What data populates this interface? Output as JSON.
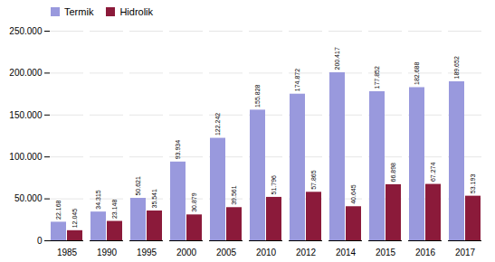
{
  "chart_data": {
    "type": "bar",
    "categories": [
      "1985",
      "1990",
      "1995",
      "2000",
      "2005",
      "2010",
      "2012",
      "2014",
      "2015",
      "2016",
      "2017"
    ],
    "series": [
      {
        "name": "Termik",
        "color": "#9999DD",
        "values": [
          22168,
          34315,
          50621,
          93934,
          122242,
          155828,
          174872,
          200417,
          177852,
          182688,
          189652
        ],
        "value_labels": [
          "22.168",
          "34.315",
          "50.621",
          "93.934",
          "122.242",
          "155.828",
          "174.872",
          "200.417",
          "177.852",
          "182.688",
          "189.652"
        ]
      },
      {
        "name": "Hidrolik",
        "color": "#8B1A3A",
        "values": [
          12045,
          23148,
          35541,
          30879,
          39561,
          51796,
          57865,
          40645,
          66898,
          67274,
          53193
        ],
        "value_labels": [
          "12.045",
          "23.148",
          "35.541",
          "30.879",
          "39.561",
          "51.796",
          "57.865",
          "40.645",
          "66.898",
          "67.274",
          "53.193"
        ]
      }
    ],
    "ylim": [
      0,
      250000
    ],
    "yticks": [
      0,
      {
        "value": 50000,
        "label": "50.000"
      },
      {
        "value": 100000,
        "label": "100.000"
      },
      {
        "value": 150000,
        "label": "150.000"
      },
      {
        "value": 200000,
        "label": "200.000"
      },
      {
        "value": 250000,
        "label": "250.000"
      }
    ],
    "grid": true,
    "legend": "upper left",
    "data_labels": true
  }
}
